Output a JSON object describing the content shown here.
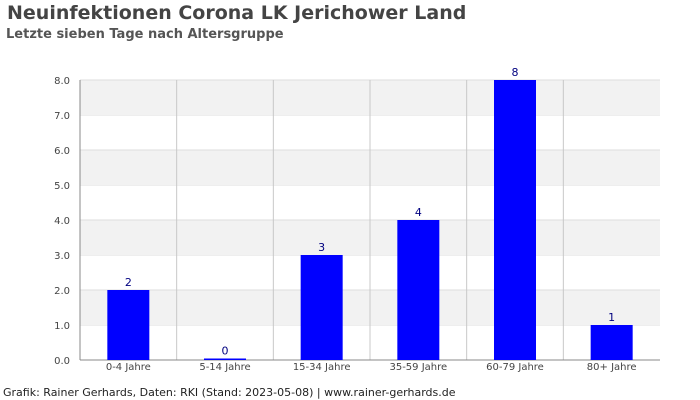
{
  "chart_data": {
    "type": "bar",
    "title": "Neuinfektionen Corona LK Jerichower Land",
    "subtitle": "Letzte sieben Tage nach Altersgruppe",
    "categories": [
      "0-4 Jahre",
      "5-14 Jahre",
      "15-34 Jahre",
      "35-59 Jahre",
      "60-79 Jahre",
      "80+ Jahre"
    ],
    "values": [
      2,
      0,
      3,
      4,
      8,
      1
    ],
    "ylim": [
      0,
      8
    ],
    "yticks": [
      "0.0",
      "1.0",
      "2.0",
      "3.0",
      "4.0",
      "5.0",
      "6.0",
      "7.0",
      "8.0"
    ],
    "grid": true,
    "bar_color": "#0000ff",
    "label_color": "#000080"
  },
  "footer": "Grafik: Rainer Gerhards, Daten: RKI (Stand: 2023-05-08) | www.rainer-gerhards.de"
}
